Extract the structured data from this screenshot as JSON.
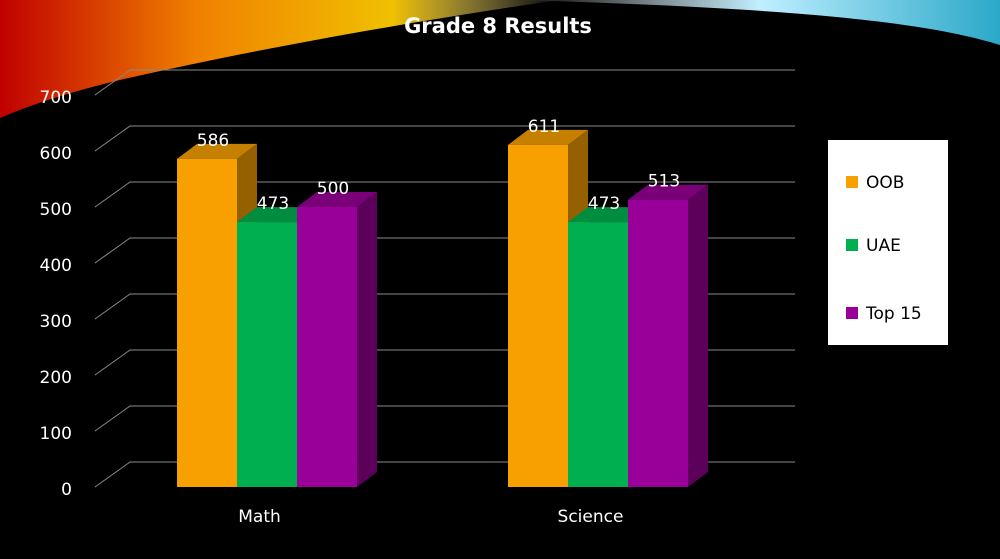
{
  "chart_data": {
    "type": "bar3d",
    "title": "Grade 8 Results",
    "categories": [
      "Math",
      "Science"
    ],
    "series": [
      {
        "name": "OOB",
        "color": "#f7a000",
        "values": [
          586,
          611
        ]
      },
      {
        "name": "UAE",
        "color": "#00b050",
        "values": [
          473,
          473
        ]
      },
      {
        "name": "Top 15",
        "color": "#990099",
        "values": [
          500,
          513
        ]
      }
    ],
    "ylim": [
      0,
      700
    ],
    "yticks": [
      0,
      100,
      200,
      300,
      400,
      500,
      600,
      700
    ],
    "grid": true,
    "legend": "right",
    "data_labels": true
  }
}
